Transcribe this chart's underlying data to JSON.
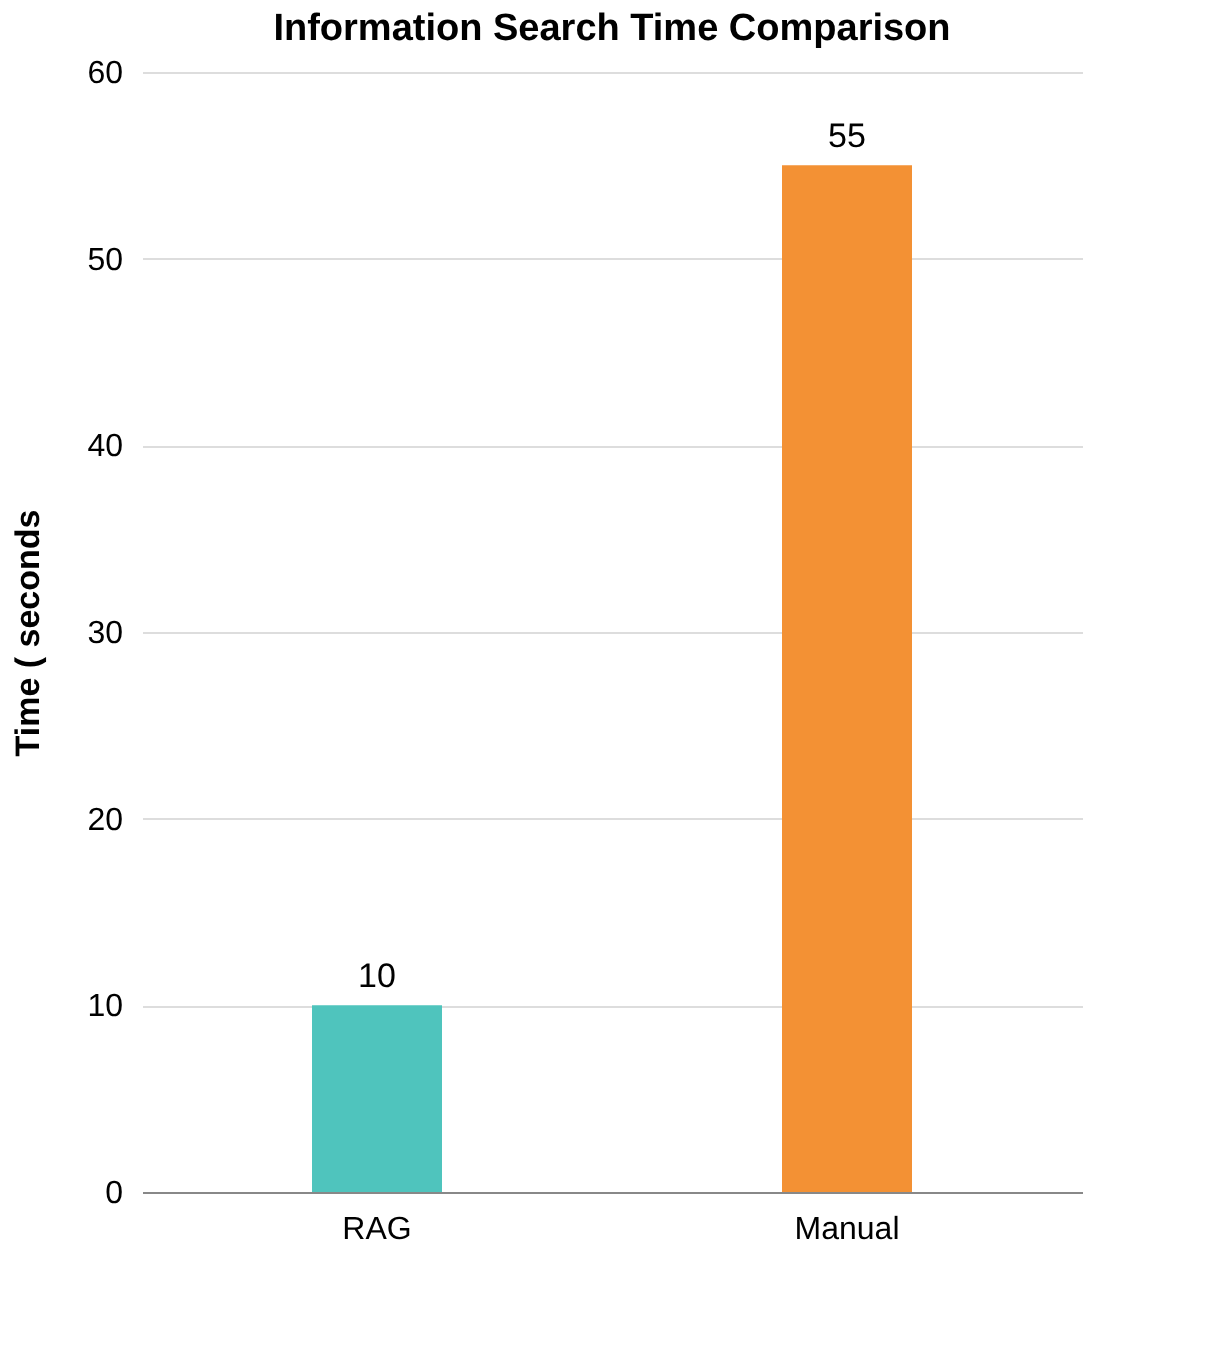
{
  "chart_data": {
    "type": "bar",
    "title": "Information Search Time Comparison",
    "ylabel": "Time ( seconds",
    "categories": [
      "RAG",
      "Manual"
    ],
    "values": [
      10,
      55
    ],
    "colors": [
      "#4fc4bd",
      "#f39134"
    ],
    "ylim": [
      0,
      60
    ],
    "yticks": [
      0,
      10,
      20,
      30,
      40,
      50,
      60
    ],
    "grid": "y",
    "data_labels": true
  }
}
